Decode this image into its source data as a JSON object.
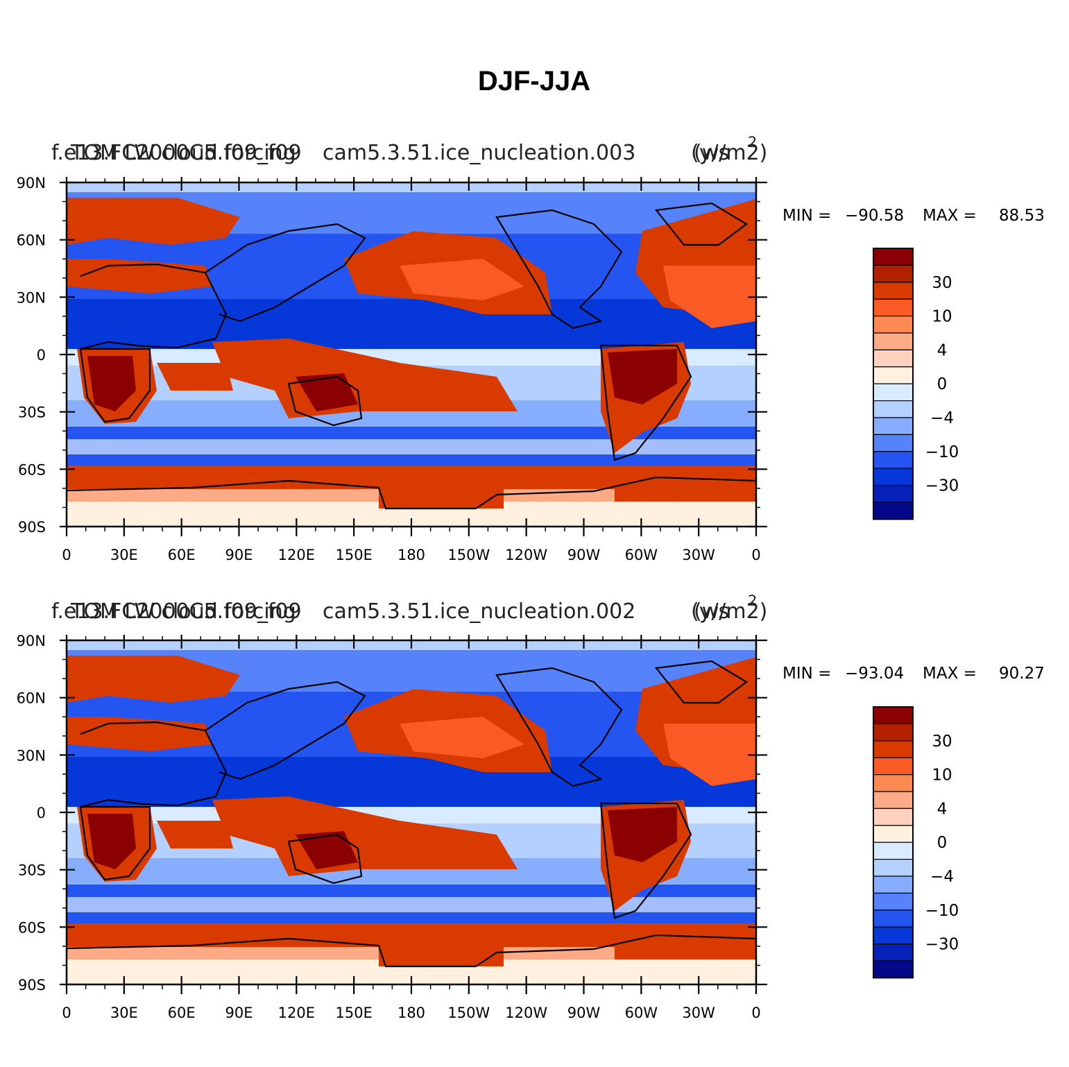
{
  "figure": {
    "title": "DJF-JJA"
  },
  "legend": {
    "colors": [
      "#8b0000",
      "#b22000",
      "#d83a00",
      "#fa5a23",
      "#fd8a52",
      "#fdaa86",
      "#fdd1bd",
      "#fff0e0",
      "#d8ebff",
      "#b4d0ff",
      "#87aefe",
      "#5783fa",
      "#2555f0",
      "#0537d9",
      "#0521b8",
      "#03088b"
    ],
    "labels": [
      "30",
      "10",
      "4",
      "0",
      "−4",
      "−10",
      "−30"
    ]
  },
  "axes": {
    "lat_labels": [
      "90N",
      "60N",
      "30N",
      "0",
      "30S",
      "60S",
      "90S"
    ],
    "lon_labels": [
      "0",
      "30E",
      "60E",
      "90E",
      "120E",
      "150E",
      "180",
      "150W",
      "120W",
      "90W",
      "60W",
      "30W",
      "0"
    ]
  },
  "panels": [
    {
      "left_title": "f.e13.FC2000C5.f09_f09",
      "overlay_title": "TOM LW cloud forcing",
      "center_title": "cam5.3.51.ice_nucleation.003",
      "units_title": "(w/m2)",
      "units_overlay": "(y/s",
      "superscript": "2",
      "min_label": "MIN =",
      "min_value": "−90.58",
      "max_label": "MAX =",
      "max_value": "88.53"
    },
    {
      "left_title": "f.e13.FC2000C5.f09_f09",
      "overlay_title": "TOM LW cloud forcing",
      "center_title": "cam5.3.51.ice_nucleation.002",
      "units_title": "(w/m2)",
      "units_overlay": "(y/s",
      "superscript": "2",
      "min_label": "MIN =",
      "min_value": "−93.04",
      "max_label": "MAX =",
      "max_value": "90.27"
    }
  ]
}
